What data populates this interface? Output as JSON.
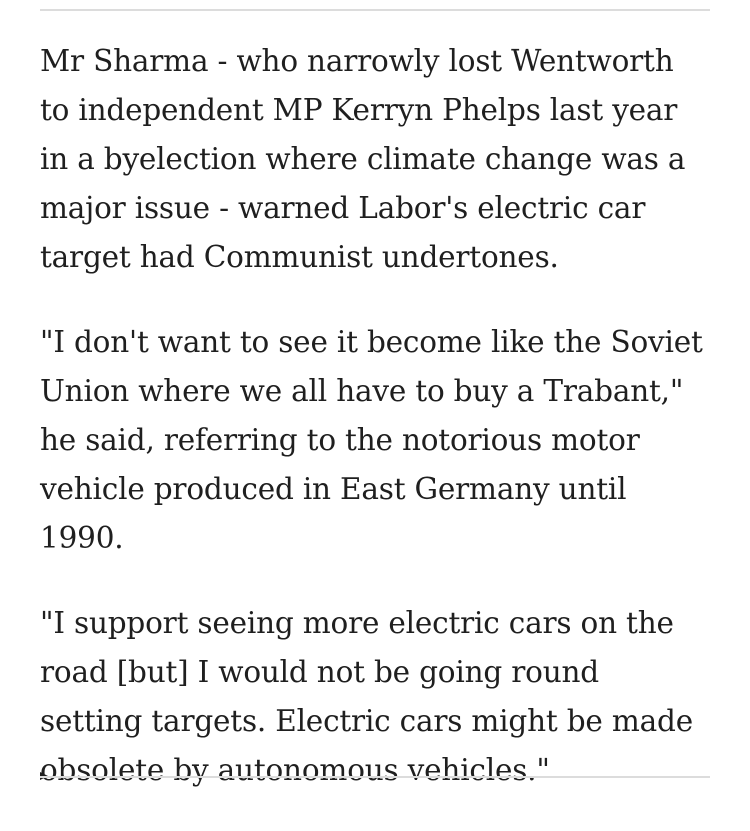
{
  "article": {
    "paragraphs": [
      "Mr Sharma - who narrowly lost Wentworth\nto independent MP Kerryn Phelps last year\nin a byelection where climate change was a\nmajor issue - warned Labor's electric car\ntarget had Communist undertones.",
      "\"I don't want to see it become like the Soviet\nUnion where we all have to buy a Trabant,\"\nhe said, referring to the notorious motor\nvehicle produced in East Germany until\n1990.",
      "\"I support seeing more electric cars on the\nroad [but] I would not be going round\nsetting targets. Electric cars might be made\nobsolete by autonomous vehicles.\""
    ]
  }
}
